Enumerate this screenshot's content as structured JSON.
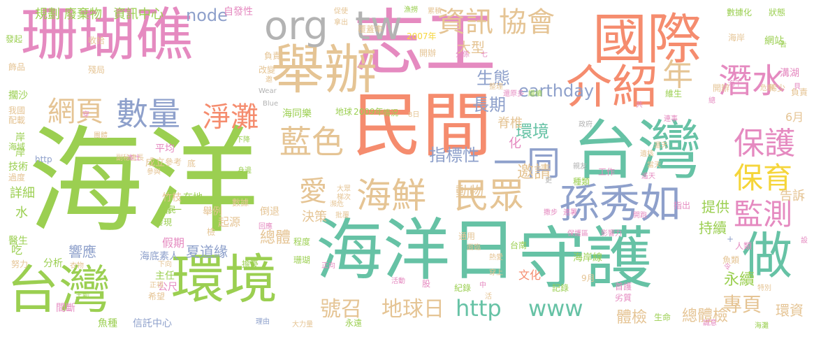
{
  "palette": {
    "green": "#9bcf51",
    "pink": "#e58ac0",
    "orange": "#f58c6e",
    "teal": "#66c2a5",
    "blue": "#8ea0cb",
    "tan": "#e5c494",
    "gray": "#b3b3b3",
    "yellow": "#f5d53a"
  },
  "words": [
    {
      "text": "海洋"
    },
    {
      "text": "志工"
    },
    {
      "text": "珊瑚礁"
    },
    {
      "text": "民間"
    },
    {
      "text": "台灣"
    },
    {
      "text": "海洋日"
    },
    {
      "text": "守護"
    },
    {
      "text": "國際"
    },
    {
      "text": "舉辦"
    },
    {
      "text": "台灣"
    },
    {
      "text": "環境"
    },
    {
      "text": "介紹"
    },
    {
      "text": "org"
    },
    {
      "text": "tw"
    },
    {
      "text": "做"
    },
    {
      "text": "孫秀如"
    },
    {
      "text": "海鮮"
    },
    {
      "text": "民眾"
    },
    {
      "text": "數量"
    },
    {
      "text": "潛水"
    },
    {
      "text": "一同"
    },
    {
      "text": "藍色"
    },
    {
      "text": "保護"
    },
    {
      "text": "淨灘"
    },
    {
      "text": "監測"
    },
    {
      "text": "保育"
    },
    {
      "text": "網頁"
    },
    {
      "text": "資訊"
    },
    {
      "text": "協會"
    },
    {
      "text": "愛"
    },
    {
      "text": "http"
    },
    {
      "text": "www"
    },
    {
      "text": "地球日"
    },
    {
      "text": "年"
    },
    {
      "text": "號召"
    },
    {
      "text": "專頁"
    },
    {
      "text": "總體檢"
    },
    {
      "text": "指標性"
    },
    {
      "text": "生態"
    },
    {
      "text": "長期"
    },
    {
      "text": "earthday"
    },
    {
      "text": "大型"
    },
    {
      "text": "node"
    },
    {
      "text": "規劃"
    },
    {
      "text": "廢棄物"
    },
    {
      "text": "資訊中心"
    },
    {
      "text": "環境"
    },
    {
      "text": "邀請"
    },
    {
      "text": "脊椎"
    },
    {
      "text": "動物"
    },
    {
      "text": "持續"
    },
    {
      "text": "提供"
    },
    {
      "text": "永續"
    },
    {
      "text": "體檢"
    },
    {
      "text": "環資"
    },
    {
      "text": "總體"
    },
    {
      "text": "夏道緣"
    },
    {
      "text": "響應"
    },
    {
      "text": "海底素人"
    },
    {
      "text": "決策"
    },
    {
      "text": "告訴"
    },
    {
      "text": "6月"
    },
    {
      "text": "自發性"
    },
    {
      "text": "詳細"
    },
    {
      "text": "水"
    },
    {
      "text": "化"
    },
    {
      "text": "起源"
    },
    {
      "text": "倒退"
    },
    {
      "text": "舉例"
    },
    {
      "text": "竹枝"
    },
    {
      "text": "在地"
    },
    {
      "text": "第一"
    },
    {
      "text": "成立"
    },
    {
      "text": "參考"
    },
    {
      "text": "底"
    },
    {
      "text": "平均"
    },
    {
      "text": "地球"
    },
    {
      "text": "2009年"
    },
    {
      "text": "海同樂"
    },
    {
      "text": "情況"
    },
    {
      "text": "8日"
    },
    {
      "text": "文化"
    },
    {
      "text": "主任"
    },
    {
      "text": "公尺"
    },
    {
      "text": "希望"
    },
    {
      "text": "魚種"
    },
    {
      "text": "信託中心"
    },
    {
      "text": "理由"
    },
    {
      "text": "永遠"
    },
    {
      "text": "大力量"
    },
    {
      "text": "間斷"
    },
    {
      "text": "主動"
    },
    {
      "text": "努力"
    },
    {
      "text": "醫生"
    },
    {
      "text": "吃"
    },
    {
      "text": "分析"
    },
    {
      "text": "衣物"
    },
    {
      "text": "下向"
    },
    {
      "text": "正視"
    },
    {
      "text": "假期"
    },
    {
      "text": "發現"
    },
    {
      "text": "全民"
    },
    {
      "text": "珊瑚"
    },
    {
      "text": "擔憂"
    },
    {
      "text": "程度"
    },
    {
      "text": "台南"
    },
    {
      "text": "海岸線"
    },
    {
      "text": "紀錄"
    },
    {
      "text": "記錄"
    },
    {
      "text": "9月"
    },
    {
      "text": "首護"
    },
    {
      "text": "劣質"
    },
    {
      "text": "生命"
    },
    {
      "text": "誠意"
    },
    {
      "text": "海灘"
    },
    {
      "text": "人類"
    },
    {
      "text": "魚類"
    },
    {
      "text": "特別"
    },
    {
      "text": "指出"
    },
    {
      "text": "工作"
    },
    {
      "text": "種類"
    },
    {
      "text": "當天"
    },
    {
      "text": "親友"
    },
    {
      "text": "還天"
    },
    {
      "text": "開辦"
    },
    {
      "text": "連事"
    },
    {
      "text": "維生"
    },
    {
      "text": "稀少"
    },
    {
      "text": "負責"
    },
    {
      "text": "網站"
    },
    {
      "text": "溝湖"
    },
    {
      "text": "危機"
    },
    {
      "text": "海下"
    },
    {
      "text": "數據化"
    },
    {
      "text": "狀態"
    },
    {
      "text": "海岸"
    },
    {
      "text": "開辦"
    },
    {
      "text": "分係"
    },
    {
      "text": "七"
    },
    {
      "text": "2007年"
    },
    {
      "text": "覆蓋率"
    },
    {
      "text": "促使"
    },
    {
      "text": "拿出"
    },
    {
      "text": "漁撈"
    },
    {
      "text": "累積"
    },
    {
      "text": "收拾"
    },
    {
      "text": "負責"
    },
    {
      "text": "改變"
    },
    {
      "text": "發起"
    },
    {
      "text": "飾品"
    },
    {
      "text": "殘局"
    },
    {
      "text": "擱沙"
    },
    {
      "text": "配載"
    },
    {
      "text": "我國"
    },
    {
      "text": "海域"
    },
    {
      "text": "Blue"
    },
    {
      "text": "Wear"
    },
    {
      "text": "團體"
    },
    {
      "text": "副秘書長"
    },
    {
      "text": "http"
    },
    {
      "text": "技術"
    },
    {
      "text": "過度"
    },
    {
      "text": "本土"
    },
    {
      "text": "參與"
    },
    {
      "text": "身邊"
    },
    {
      "text": "下降"
    },
    {
      "text": "數據"
    },
    {
      "text": "大眾"
    },
    {
      "text": "梯次"
    },
    {
      "text": "瀕危"
    },
    {
      "text": "批覆"
    },
    {
      "text": "回應"
    },
    {
      "text": "正向"
    },
    {
      "text": "熱愛"
    },
    {
      "text": "穿上"
    },
    {
      "text": "通用"
    },
    {
      "text": "面臨"
    },
    {
      "text": "活動"
    },
    {
      "text": "保護區"
    },
    {
      "text": "影響力"
    },
    {
      "text": "撒步"
    },
    {
      "text": "更"
    },
    {
      "text": "政府"
    },
    {
      "text": "還原多"
    },
    {
      "text": "繼續"
    },
    {
      "text": "整理"
    },
    {
      "text": "共"
    },
    {
      "text": "總"
    },
    {
      "text": "告"
    },
    {
      "text": "貝"
    },
    {
      "text": "設"
    },
    {
      "text": "穿"
    },
    {
      "text": "股"
    },
    {
      "text": "中"
    },
    {
      "text": "活"
    },
    {
      "text": "令"
    },
    {
      "text": "邀"
    },
    {
      "text": "+"
    },
    {
      "text": "岸"
    },
    {
      "text": "檢"
    },
    {
      "text": "遺核"
    },
    {
      "text": "開跑"
    },
    {
      "text": "遙天"
    },
    {
      "text": "連署"
    },
    {
      "text": "岸"
    }
  ]
}
